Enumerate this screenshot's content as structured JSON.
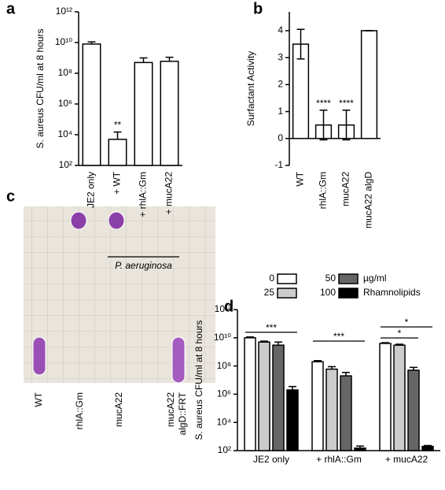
{
  "chart_data": [
    {
      "type": "bar",
      "panel_label": "a",
      "ylabel": "S. aureus CFU/ml at 8 hours",
      "categories": [
        "JE2 only",
        "+ WT",
        "+ rhlA::Gm",
        "+ mucA22"
      ],
      "values": [
        8000000000,
        5000,
        500000000,
        600000000
      ],
      "errors": [
        3000000000,
        10000,
        500000000,
        500000000
      ],
      "color": "#ffffff",
      "log": true,
      "ylim": [
        100,
        1000000000000
      ],
      "yticks": [
        {
          "value": 100,
          "label": "10²"
        },
        {
          "value": 10000,
          "label": "10⁴"
        },
        {
          "value": 1000000,
          "label": "10⁶"
        },
        {
          "value": 100000000,
          "label": "10⁸"
        },
        {
          "value": 10000000000,
          "label": "10¹⁰"
        },
        {
          "value": 1000000000000,
          "label": "10¹²"
        }
      ],
      "annotations": [
        {
          "text": "**",
          "category": 1
        }
      ],
      "group_label": {
        "text": "P. aeruginosa",
        "from": 1,
        "to": 3
      }
    },
    {
      "type": "bar",
      "panel_label": "b",
      "ylabel": "Surfactant Activity",
      "categories": [
        "WT",
        "rhlA::Gm",
        "mucA22",
        "mucA22 algD"
      ],
      "values": [
        3.5,
        0.5,
        0.5,
        4
      ],
      "errors": [
        0.55,
        0.55,
        0.55,
        0
      ],
      "color": "#ffffff",
      "log": false,
      "ylim": [
        -1,
        4.7
      ],
      "yticks": [
        -1,
        0,
        1,
        2,
        3,
        4
      ],
      "annotations": [
        {
          "text": "****",
          "category": 1
        },
        {
          "text": "****",
          "category": 2
        }
      ]
    },
    {
      "type": "grouped_bar",
      "panel_label": "d",
      "ylabel": "S. aureus CFU/ml at 8 hours",
      "categories": [
        "JE2 only",
        "+ rhlA::Gm",
        "+ mucA22"
      ],
      "series": [
        {
          "name": "0",
          "color": "#ffffff",
          "values": [
            10000000000,
            200000000,
            4000000000
          ],
          "errors": [
            1500000000,
            40000000,
            500000000
          ]
        },
        {
          "name": "25",
          "color": "#cccccc",
          "values": [
            5000000000,
            60000000,
            3000000000
          ],
          "errors": [
            800000000,
            30000000,
            500000000
          ]
        },
        {
          "name": "50",
          "color": "#666666",
          "values": [
            3000000000,
            20000000,
            50000000
          ],
          "errors": [
            2000000000,
            15000000,
            30000000
          ]
        },
        {
          "name": "100",
          "color": "#000000",
          "values": [
            2000000,
            150,
            200
          ],
          "errors": [
            1500000,
            60,
            30
          ]
        }
      ],
      "legend": "top",
      "legend_texts": [
        "µg/ml",
        "Rhamnolipids"
      ],
      "log": true,
      "ylim": [
        100,
        1000000000000
      ],
      "yticks": [
        {
          "value": 100,
          "label": "10²"
        },
        {
          "value": 10000,
          "label": "10⁴"
        },
        {
          "value": 1000000,
          "label": "10⁶"
        },
        {
          "value": 100000000,
          "label": "10⁸"
        },
        {
          "value": 10000000000,
          "label": "10¹⁰"
        },
        {
          "value": 1000000000000,
          "label": "10¹²"
        }
      ],
      "brackets": [
        {
          "text": "***",
          "category": 0,
          "from": 0,
          "to": 3
        },
        {
          "text": "***",
          "category": 1,
          "from": 0,
          "to": 3
        },
        {
          "text": "*",
          "category": 2,
          "from": 0,
          "to": 2
        },
        {
          "text": "*",
          "category": 2,
          "from": 0,
          "to": 3
        }
      ]
    }
  ],
  "panel_c": {
    "panel_label": "c",
    "lanes": [
      [
        "WT"
      ],
      [
        "rhlA::Gm"
      ],
      [
        "mucA22"
      ],
      [
        "mucA22",
        "algD::FRT"
      ]
    ]
  }
}
